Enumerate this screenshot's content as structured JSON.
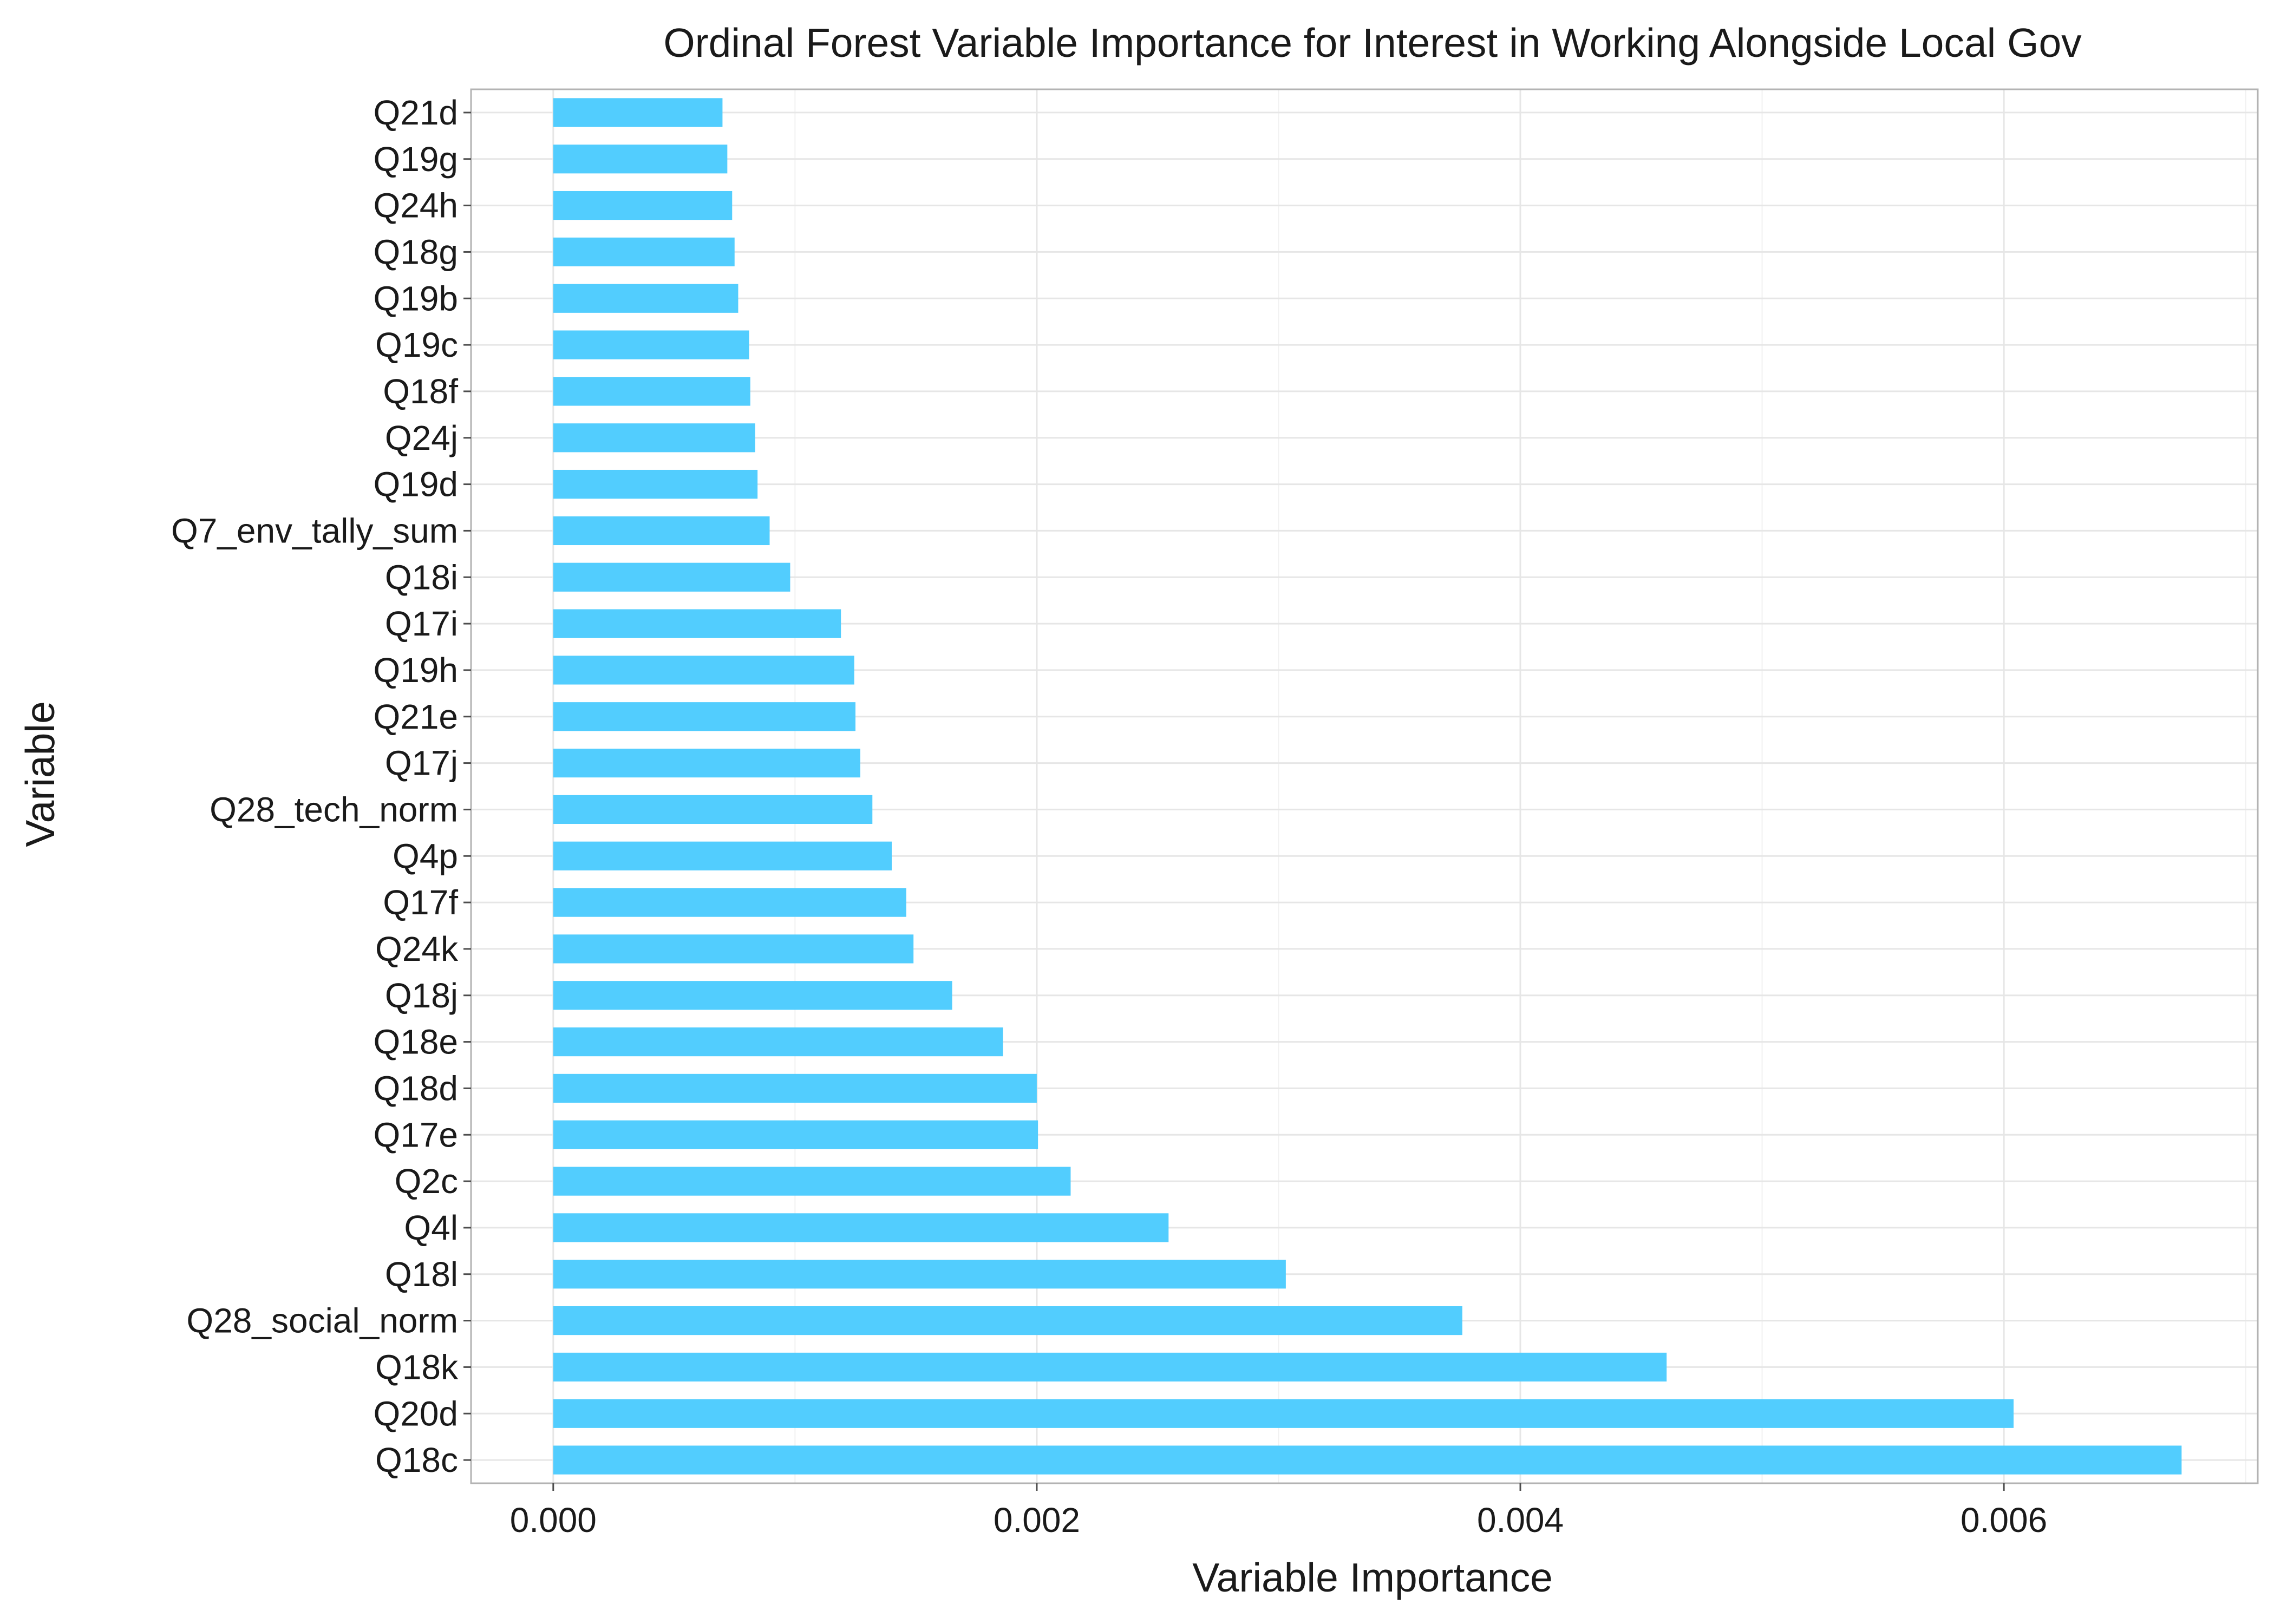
{
  "chart_data": {
    "type": "bar",
    "orientation": "horizontal",
    "title": "Ordinal Forest Variable Importance for Interest in Working Alongside Local Gov",
    "xlabel": "Variable Importance",
    "ylabel": "Variable",
    "xlim": [
      -0.00034,
      0.00705
    ],
    "x_ticks": [
      0.0,
      0.002,
      0.004,
      0.006
    ],
    "x_tick_labels": [
      "0.000",
      "0.002",
      "0.004",
      "0.006"
    ],
    "grid": true,
    "legend": "none",
    "bar_color": "#52CDFE",
    "categories": [
      "Q21d",
      "Q19g",
      "Q24h",
      "Q18g",
      "Q19b",
      "Q19c",
      "Q18f",
      "Q24j",
      "Q19d",
      "Q7_env_tally_sum",
      "Q18i",
      "Q17i",
      "Q19h",
      "Q21e",
      "Q17j",
      "Q28_tech_norm",
      "Q4p",
      "Q17f",
      "Q24k",
      "Q18j",
      "Q18e",
      "Q18d",
      "Q17e",
      "Q2c",
      "Q4l",
      "Q18l",
      "Q28_social_norm",
      "Q18k",
      "Q20d",
      "Q18c"
    ],
    "values": [
      0.0007,
      0.00072,
      0.00074,
      0.00075,
      0.000765,
      0.00081,
      0.000815,
      0.000835,
      0.000845,
      0.000895,
      0.00098,
      0.00119,
      0.001245,
      0.00125,
      0.00127,
      0.00132,
      0.0014,
      0.00146,
      0.00149,
      0.00165,
      0.00186,
      0.002,
      0.002005,
      0.00214,
      0.002545,
      0.00303,
      0.00376,
      0.004605,
      0.00604,
      0.006735
    ]
  }
}
